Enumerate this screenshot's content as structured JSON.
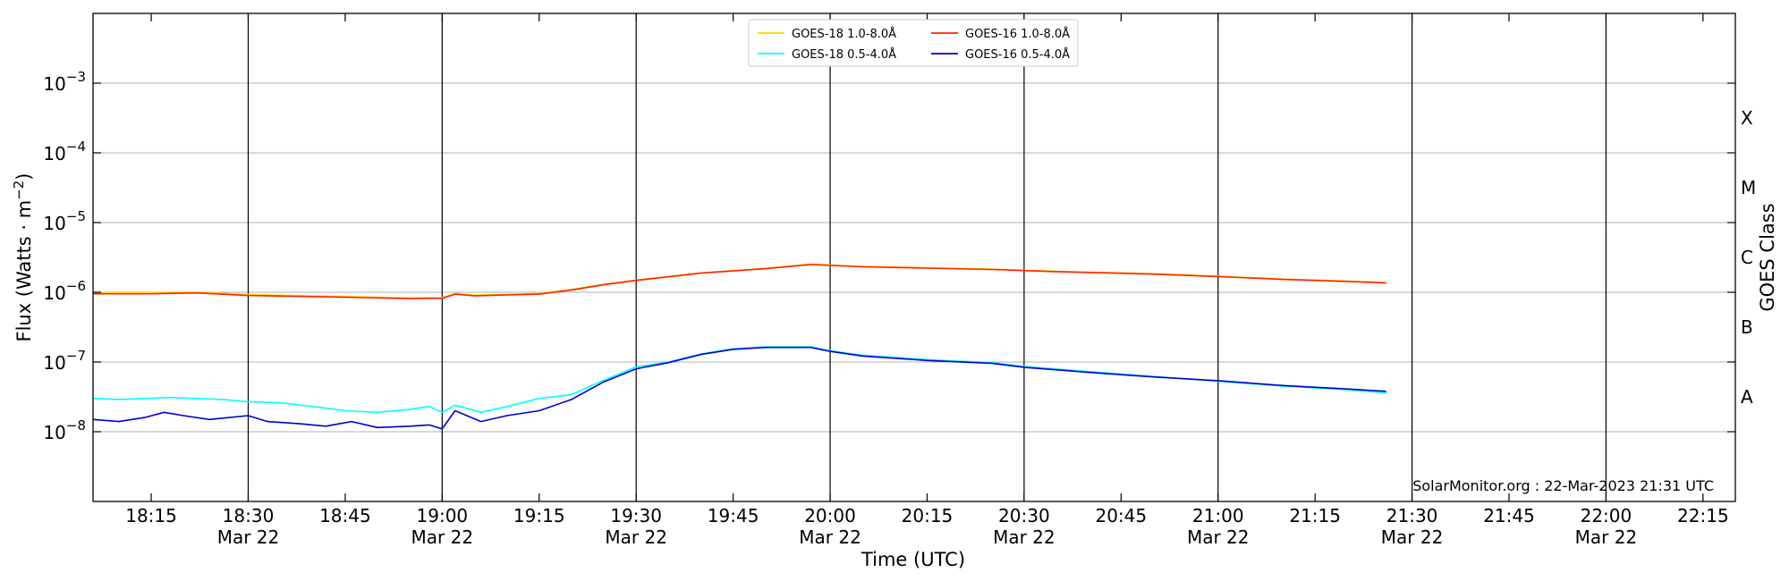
{
  "chart_data": {
    "type": "line",
    "title": "",
    "xlabel": "Time (UTC)",
    "ylabel_prefix": "Flux (Watts · m",
    "ylabel_exp": "−2",
    "ylabel_suffix": ")",
    "y2label": "GOES Class",
    "yscale": "log",
    "ylim": [
      1e-09,
      0.01
    ],
    "xlim": [
      "2023-03-22 18:06",
      "2023-03-22 22:20"
    ],
    "x_ticks": [
      {
        "t": "2023-03-22 18:15",
        "time": "18:15",
        "date": ""
      },
      {
        "t": "2023-03-22 18:30",
        "time": "18:30",
        "date": "Mar 22"
      },
      {
        "t": "2023-03-22 18:45",
        "time": "18:45",
        "date": ""
      },
      {
        "t": "2023-03-22 19:00",
        "time": "19:00",
        "date": "Mar 22"
      },
      {
        "t": "2023-03-22 19:15",
        "time": "19:15",
        "date": ""
      },
      {
        "t": "2023-03-22 19:30",
        "time": "19:30",
        "date": "Mar 22"
      },
      {
        "t": "2023-03-22 19:45",
        "time": "19:45",
        "date": ""
      },
      {
        "t": "2023-03-22 20:00",
        "time": "20:00",
        "date": "Mar 22"
      },
      {
        "t": "2023-03-22 20:15",
        "time": "20:15",
        "date": ""
      },
      {
        "t": "2023-03-22 20:30",
        "time": "20:30",
        "date": "Mar 22"
      },
      {
        "t": "2023-03-22 20:45",
        "time": "20:45",
        "date": ""
      },
      {
        "t": "2023-03-22 21:00",
        "time": "21:00",
        "date": "Mar 22"
      },
      {
        "t": "2023-03-22 21:15",
        "time": "21:15",
        "date": ""
      },
      {
        "t": "2023-03-22 21:30",
        "time": "21:30",
        "date": "Mar 22"
      },
      {
        "t": "2023-03-22 21:45",
        "time": "21:45",
        "date": ""
      },
      {
        "t": "2023-03-22 22:00",
        "time": "22:00",
        "date": "Mar 22"
      },
      {
        "t": "2023-03-22 22:15",
        "time": "22:15",
        "date": ""
      }
    ],
    "vlines": [
      "2023-03-22 18:30",
      "2023-03-22 19:00",
      "2023-03-22 19:30",
      "2023-03-22 20:00",
      "2023-03-22 20:30",
      "2023-03-22 21:00",
      "2023-03-22 21:30",
      "2023-03-22 22:00"
    ],
    "y_ticks": [
      {
        "value": 1e-08,
        "base": "10",
        "exp": "−8"
      },
      {
        "value": 1e-07,
        "base": "10",
        "exp": "−7"
      },
      {
        "value": 1e-06,
        "base": "10",
        "exp": "−6"
      },
      {
        "value": 1e-05,
        "base": "10",
        "exp": "−5"
      },
      {
        "value": 0.0001,
        "base": "10",
        "exp": "−4"
      },
      {
        "value": 0.001,
        "base": "10",
        "exp": "−3"
      }
    ],
    "hgrid": [
      1e-08,
      1e-07,
      1e-06,
      1e-05,
      0.0001,
      0.001
    ],
    "goes_classes": [
      {
        "label": "A",
        "value": 3.16e-08
      },
      {
        "label": "B",
        "value": 3.16e-07
      },
      {
        "label": "C",
        "value": 3.16e-06
      },
      {
        "label": "M",
        "value": 3.16e-05
      },
      {
        "label": "X",
        "value": 0.000316
      }
    ],
    "legend_position": "top-center",
    "series": [
      {
        "name": "GOES-18 1.0-8.0Å",
        "color": "#ffd700",
        "points": [
          [
            "2023-03-22 18:06",
            1e-06
          ],
          [
            "2023-03-22 18:15",
            1e-06
          ],
          [
            "2023-03-22 18:22",
            1e-06
          ],
          [
            "2023-03-22 18:30",
            9.3e-07
          ],
          [
            "2023-03-22 18:45",
            8.7e-07
          ],
          [
            "2023-03-22 18:55",
            8.3e-07
          ],
          [
            "2023-03-22 19:00",
            8.4e-07
          ],
          [
            "2023-03-22 19:02",
            9.6e-07
          ],
          [
            "2023-03-22 19:05",
            9.1e-07
          ],
          [
            "2023-03-22 19:15",
            9.6e-07
          ],
          [
            "2023-03-22 19:20",
            1.1e-06
          ],
          [
            "2023-03-22 19:25",
            1.3e-06
          ],
          [
            "2023-03-22 19:30",
            1.5e-06
          ],
          [
            "2023-03-22 19:40",
            1.9e-06
          ],
          [
            "2023-03-22 19:50",
            2.2e-06
          ],
          [
            "2023-03-22 19:57",
            2.55e-06
          ],
          [
            "2023-03-22 20:05",
            2.35e-06
          ],
          [
            "2023-03-22 20:15",
            2.25e-06
          ],
          [
            "2023-03-22 20:25",
            2.15e-06
          ],
          [
            "2023-03-22 20:35",
            2e-06
          ],
          [
            "2023-03-22 20:50",
            1.85e-06
          ],
          [
            "2023-03-22 21:00",
            1.7e-06
          ],
          [
            "2023-03-22 21:10",
            1.55e-06
          ],
          [
            "2023-03-22 21:20",
            1.45e-06
          ],
          [
            "2023-03-22 21:26",
            1.38e-06
          ]
        ]
      },
      {
        "name": "GOES-18 0.5-4.0Å",
        "color": "#00ffff",
        "points": [
          [
            "2023-03-22 18:06",
            3e-08
          ],
          [
            "2023-03-22 18:10",
            2.9e-08
          ],
          [
            "2023-03-22 18:14",
            3e-08
          ],
          [
            "2023-03-22 18:18",
            3.1e-08
          ],
          [
            "2023-03-22 18:22",
            3e-08
          ],
          [
            "2023-03-22 18:26",
            2.9e-08
          ],
          [
            "2023-03-22 18:30",
            2.7e-08
          ],
          [
            "2023-03-22 18:35",
            2.6e-08
          ],
          [
            "2023-03-22 18:40",
            2.3e-08
          ],
          [
            "2023-03-22 18:45",
            2e-08
          ],
          [
            "2023-03-22 18:50",
            1.9e-08
          ],
          [
            "2023-03-22 18:55",
            2.1e-08
          ],
          [
            "2023-03-22 18:58",
            2.3e-08
          ],
          [
            "2023-03-22 19:00",
            1.9e-08
          ],
          [
            "2023-03-22 19:02",
            2.4e-08
          ],
          [
            "2023-03-22 19:06",
            1.9e-08
          ],
          [
            "2023-03-22 19:10",
            2.3e-08
          ],
          [
            "2023-03-22 19:15",
            3e-08
          ],
          [
            "2023-03-22 19:20",
            3.4e-08
          ],
          [
            "2023-03-22 19:25",
            5.5e-08
          ],
          [
            "2023-03-22 19:30",
            8.5e-08
          ],
          [
            "2023-03-22 19:35",
            1e-07
          ],
          [
            "2023-03-22 19:40",
            1.3e-07
          ],
          [
            "2023-03-22 19:45",
            1.55e-07
          ],
          [
            "2023-03-22 19:50",
            1.65e-07
          ],
          [
            "2023-03-22 19:57",
            1.65e-07
          ],
          [
            "2023-03-22 20:00",
            1.45e-07
          ],
          [
            "2023-03-22 20:05",
            1.25e-07
          ],
          [
            "2023-03-22 20:15",
            1.08e-07
          ],
          [
            "2023-03-22 20:25",
            9.8e-08
          ],
          [
            "2023-03-22 20:30",
            8.6e-08
          ],
          [
            "2023-03-22 20:40",
            7.3e-08
          ],
          [
            "2023-03-22 20:50",
            6.2e-08
          ],
          [
            "2023-03-22 21:00",
            5.3e-08
          ],
          [
            "2023-03-22 21:10",
            4.5e-08
          ],
          [
            "2023-03-22 21:20",
            4e-08
          ],
          [
            "2023-03-22 21:26",
            3.6e-08
          ]
        ]
      },
      {
        "name": "GOES-16 1.0-8.0Å",
        "color": "#ff2200",
        "points": [
          [
            "2023-03-22 18:06",
            9.5e-07
          ],
          [
            "2023-03-22 18:15",
            9.5e-07
          ],
          [
            "2023-03-22 18:22",
            9.8e-07
          ],
          [
            "2023-03-22 18:30",
            9e-07
          ],
          [
            "2023-03-22 18:45",
            8.5e-07
          ],
          [
            "2023-03-22 18:55",
            8.1e-07
          ],
          [
            "2023-03-22 19:00",
            8.2e-07
          ],
          [
            "2023-03-22 19:02",
            9.4e-07
          ],
          [
            "2023-03-22 19:05",
            8.9e-07
          ],
          [
            "2023-03-22 19:15",
            9.4e-07
          ],
          [
            "2023-03-22 19:20",
            1.08e-06
          ],
          [
            "2023-03-22 19:25",
            1.28e-06
          ],
          [
            "2023-03-22 19:30",
            1.48e-06
          ],
          [
            "2023-03-22 19:40",
            1.88e-06
          ],
          [
            "2023-03-22 19:50",
            2.18e-06
          ],
          [
            "2023-03-22 19:57",
            2.5e-06
          ],
          [
            "2023-03-22 20:05",
            2.32e-06
          ],
          [
            "2023-03-22 20:15",
            2.22e-06
          ],
          [
            "2023-03-22 20:25",
            2.12e-06
          ],
          [
            "2023-03-22 20:35",
            1.98e-06
          ],
          [
            "2023-03-22 20:50",
            1.82e-06
          ],
          [
            "2023-03-22 21:00",
            1.68e-06
          ],
          [
            "2023-03-22 21:10",
            1.53e-06
          ],
          [
            "2023-03-22 21:20",
            1.43e-06
          ],
          [
            "2023-03-22 21:26",
            1.36e-06
          ]
        ]
      },
      {
        "name": "GOES-16 0.5-4.0Å",
        "color": "#0000cc",
        "points": [
          [
            "2023-03-22 18:06",
            1.5e-08
          ],
          [
            "2023-03-22 18:10",
            1.4e-08
          ],
          [
            "2023-03-22 18:14",
            1.6e-08
          ],
          [
            "2023-03-22 18:17",
            1.9e-08
          ],
          [
            "2023-03-22 18:20",
            1.7e-08
          ],
          [
            "2023-03-22 18:24",
            1.5e-08
          ],
          [
            "2023-03-22 18:30",
            1.7e-08
          ],
          [
            "2023-03-22 18:33",
            1.4e-08
          ],
          [
            "2023-03-22 18:38",
            1.3e-08
          ],
          [
            "2023-03-22 18:42",
            1.2e-08
          ],
          [
            "2023-03-22 18:46",
            1.4e-08
          ],
          [
            "2023-03-22 18:50",
            1.15e-08
          ],
          [
            "2023-03-22 18:55",
            1.2e-08
          ],
          [
            "2023-03-22 18:58",
            1.25e-08
          ],
          [
            "2023-03-22 19:00",
            1.1e-08
          ],
          [
            "2023-03-22 19:02",
            2e-08
          ],
          [
            "2023-03-22 19:06",
            1.4e-08
          ],
          [
            "2023-03-22 19:10",
            1.7e-08
          ],
          [
            "2023-03-22 19:15",
            2e-08
          ],
          [
            "2023-03-22 19:20",
            2.9e-08
          ],
          [
            "2023-03-22 19:25",
            5.2e-08
          ],
          [
            "2023-03-22 19:30",
            8e-08
          ],
          [
            "2023-03-22 19:35",
            9.8e-08
          ],
          [
            "2023-03-22 19:40",
            1.28e-07
          ],
          [
            "2023-03-22 19:45",
            1.52e-07
          ],
          [
            "2023-03-22 19:50",
            1.62e-07
          ],
          [
            "2023-03-22 19:57",
            1.62e-07
          ],
          [
            "2023-03-22 20:00",
            1.42e-07
          ],
          [
            "2023-03-22 20:05",
            1.22e-07
          ],
          [
            "2023-03-22 20:15",
            1.05e-07
          ],
          [
            "2023-03-22 20:25",
            9.6e-08
          ],
          [
            "2023-03-22 20:30",
            8.4e-08
          ],
          [
            "2023-03-22 20:40",
            7.1e-08
          ],
          [
            "2023-03-22 20:50",
            6.1e-08
          ],
          [
            "2023-03-22 21:00",
            5.4e-08
          ],
          [
            "2023-03-22 21:10",
            4.6e-08
          ],
          [
            "2023-03-22 21:20",
            4.1e-08
          ],
          [
            "2023-03-22 21:26",
            3.8e-08
          ]
        ]
      }
    ],
    "footer": "SolarMonitor.org : 22-Mar-2023 21:31 UTC"
  }
}
